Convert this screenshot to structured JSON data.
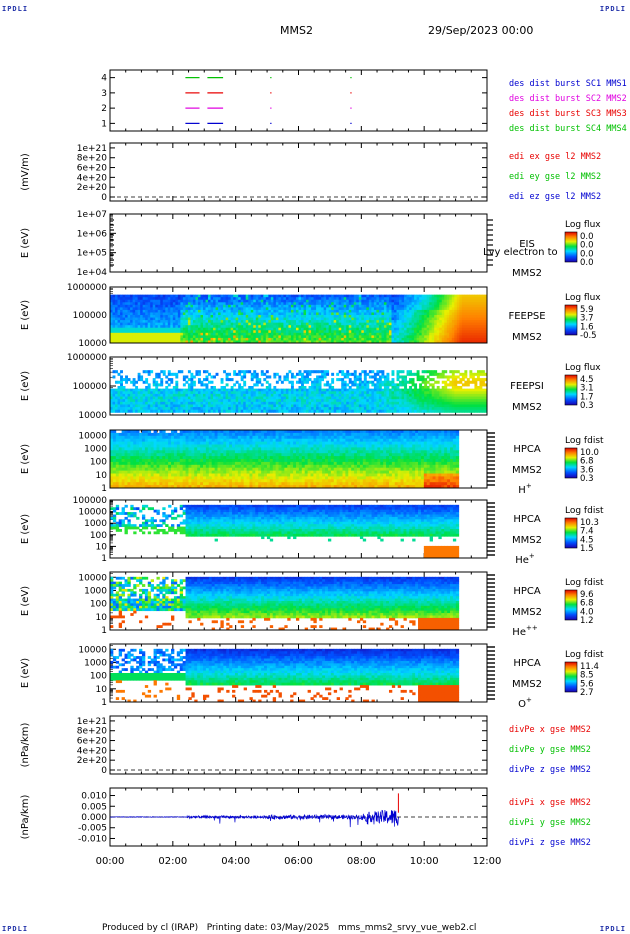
{
  "corners": {
    "tl": "IPDLI",
    "tr": "IPDLI",
    "bl": "IPDLI",
    "br": "IPDLI"
  },
  "header": {
    "spacecraft": "MMS2",
    "datetime": "29/Sep/2023 00:00"
  },
  "footer": {
    "text": "Produced by cl (IRAP)   Printing date: 03/May/2025   mms_mms2_srvy_vue_web2.cl"
  },
  "colors": {
    "red": "#e80000",
    "green": "#00c000",
    "blue": "#0000d0",
    "magenta": "#e000e0",
    "black": "#000000"
  },
  "chart_data": [
    {
      "type": "scatter",
      "name": "burst-availability",
      "x_ticks": [
        "00:00",
        "02:00",
        "04:00",
        "06:00",
        "08:00",
        "10:00",
        "12:00"
      ],
      "xlim_hours": [
        0,
        12
      ],
      "y_ticks": [
        "1",
        "2",
        "3",
        "4"
      ],
      "ylim": [
        0.5,
        4.5
      ],
      "legend": [
        {
          "label": "des dist burst SC1 MMS1",
          "color": "#0000d0"
        },
        {
          "label": "des dist burst SC2 MMS2",
          "color": "#e000e0"
        },
        {
          "label": "des dist burst SC3 MMS3",
          "color": "#e80000"
        },
        {
          "label": "des dist burst SC4 MMS4",
          "color": "#00c000"
        }
      ],
      "series": [
        {
          "level": 1,
          "color": "#0000d0",
          "segments": [
            [
              2.4,
              2.85
            ],
            [
              3.1,
              3.6
            ],
            [
              5.1,
              5.14
            ],
            [
              7.65,
              7.69
            ]
          ]
        },
        {
          "level": 2,
          "color": "#e000e0",
          "segments": [
            [
              2.4,
              2.85
            ],
            [
              3.1,
              3.6
            ],
            [
              5.1,
              5.14
            ],
            [
              7.65,
              7.69
            ]
          ]
        },
        {
          "level": 3,
          "color": "#e80000",
          "segments": [
            [
              2.4,
              2.85
            ],
            [
              3.1,
              3.6
            ],
            [
              5.1,
              5.14
            ],
            [
              7.65,
              7.69
            ]
          ]
        },
        {
          "level": 4,
          "color": "#00c000",
          "segments": [
            [
              2.4,
              2.85
            ],
            [
              3.1,
              3.6
            ],
            [
              5.1,
              5.14
            ],
            [
              7.65,
              7.69
            ]
          ]
        }
      ]
    },
    {
      "type": "line",
      "name": "edi-e-field",
      "ylabel": "(mV/m)",
      "y_ticks": [
        "0",
        "2e+20",
        "4e+20",
        "6e+20",
        "8e+20",
        "1e+21"
      ],
      "ylim": [
        0,
        1.1e+21
      ],
      "legend": [
        {
          "label": "edi ex gse l2 MMS2",
          "color": "#e80000"
        },
        {
          "label": "edi ey gse l2 MMS2",
          "color": "#00c000"
        },
        {
          "label": "edi ez gse l2 MMS2",
          "color": "#0000d0"
        }
      ]
    },
    {
      "type": "heatmap",
      "name": "eis",
      "ylabel": "E (eV)",
      "y_ticks": [
        "1e+04",
        "1e+05",
        "1e+06",
        "1e+07"
      ],
      "log_range": [
        4,
        7
      ],
      "instrument": [
        "EIS",
        "MMS2"
      ],
      "overlay_text": "Lvy electron to",
      "colorbar": {
        "title": "Log flux",
        "ticks": [
          "0.0",
          "0.0",
          "0.0",
          "0.0"
        ]
      }
    },
    {
      "type": "heatmap",
      "name": "feeps-electron",
      "ylabel": "E (eV)",
      "y_ticks": [
        "10000",
        "100000",
        "1000000"
      ],
      "log_range": [
        4,
        6
      ],
      "instrument": [
        "FEEPSE",
        "MMS2"
      ],
      "colorbar": {
        "title": "Log flux",
        "ticks": [
          "5.9",
          "3.7",
          "1.6",
          "-0.5"
        ]
      }
    },
    {
      "type": "heatmap",
      "name": "feeps-ion",
      "ylabel": "E (eV)",
      "y_ticks": [
        "10000",
        "100000",
        "1000000"
      ],
      "log_range": [
        4,
        6
      ],
      "instrument": [
        "FEEPSI",
        "MMS2"
      ],
      "colorbar": {
        "title": "Log flux",
        "ticks": [
          "4.5",
          "3.1",
          "1.7",
          "0.3"
        ]
      }
    },
    {
      "type": "heatmap",
      "name": "hpca-h",
      "ylabel": "E (eV)",
      "y_ticks": [
        "1",
        "10",
        "100",
        "1000",
        "10000"
      ],
      "log_range": [
        0,
        4.4
      ],
      "instrument": [
        "HPCA",
        "MMS2"
      ],
      "species": "H",
      "species_sup": "+",
      "colorbar": {
        "title": "Log fdist",
        "ticks": [
          "10.0",
          "6.8",
          "3.6",
          "0.3"
        ]
      }
    },
    {
      "type": "heatmap",
      "name": "hpca-he",
      "ylabel": "E (eV)",
      "y_ticks": [
        "1",
        "10",
        "100",
        "1000",
        "10000",
        "100000"
      ],
      "log_range": [
        0,
        5
      ],
      "instrument": [
        "HPCA",
        "MMS2"
      ],
      "species": "He",
      "species_sup": "+",
      "colorbar": {
        "title": "Log fdist",
        "ticks": [
          "10.3",
          "7.4",
          "4.5",
          "1.5"
        ]
      }
    },
    {
      "type": "heatmap",
      "name": "hpca-hepp",
      "ylabel": "E (eV)",
      "y_ticks": [
        "1",
        "10",
        "100",
        "1000",
        "10000"
      ],
      "log_range": [
        0,
        4.4
      ],
      "instrument": [
        "HPCA",
        "MMS2"
      ],
      "species": "He",
      "species_sup": "++",
      "colorbar": {
        "title": "Log fdist",
        "ticks": [
          "9.6",
          "6.8",
          "4.0",
          "1.2"
        ]
      }
    },
    {
      "type": "heatmap",
      "name": "hpca-o",
      "ylabel": "E (eV)",
      "y_ticks": [
        "1",
        "10",
        "100",
        "1000",
        "10000"
      ],
      "log_range": [
        0,
        4.4
      ],
      "instrument": [
        "HPCA",
        "MMS2"
      ],
      "species": "O",
      "species_sup": "+",
      "colorbar": {
        "title": "Log fdist",
        "ticks": [
          "11.4",
          "8.5",
          "5.6",
          "2.7"
        ]
      }
    },
    {
      "type": "line",
      "name": "divpe",
      "ylabel": "(nPa/km)",
      "y_ticks": [
        "0",
        "2e+20",
        "4e+20",
        "6e+20",
        "8e+20",
        "1e+21"
      ],
      "ylim": [
        0,
        1.1e+21
      ],
      "legend": [
        {
          "label": "divPe x gse MMS2",
          "color": "#e80000"
        },
        {
          "label": "divPe y gse MMS2",
          "color": "#00c000"
        },
        {
          "label": "divPe z gse MMS2",
          "color": "#0000d0"
        }
      ]
    },
    {
      "type": "line",
      "name": "divpi",
      "ylabel": "(nPa/km)",
      "y_ticks": [
        "-0.010",
        "-0.005",
        "0.000",
        "0.005",
        "0.010"
      ],
      "y_values": [
        -0.01,
        -0.005,
        0.0,
        0.005,
        0.01
      ],
      "ylim": [
        -0.0135,
        0.0135
      ],
      "x_ticks": [
        "00:00",
        "02:00",
        "04:00",
        "06:00",
        "08:00",
        "10:00",
        "12:00"
      ],
      "legend": [
        {
          "label": "divPi x gse MMS2",
          "color": "#e80000"
        },
        {
          "label": "divPi y gse MMS2",
          "color": "#00c000"
        },
        {
          "label": "divPi z gse MMS2",
          "color": "#0000d0"
        }
      ]
    }
  ]
}
